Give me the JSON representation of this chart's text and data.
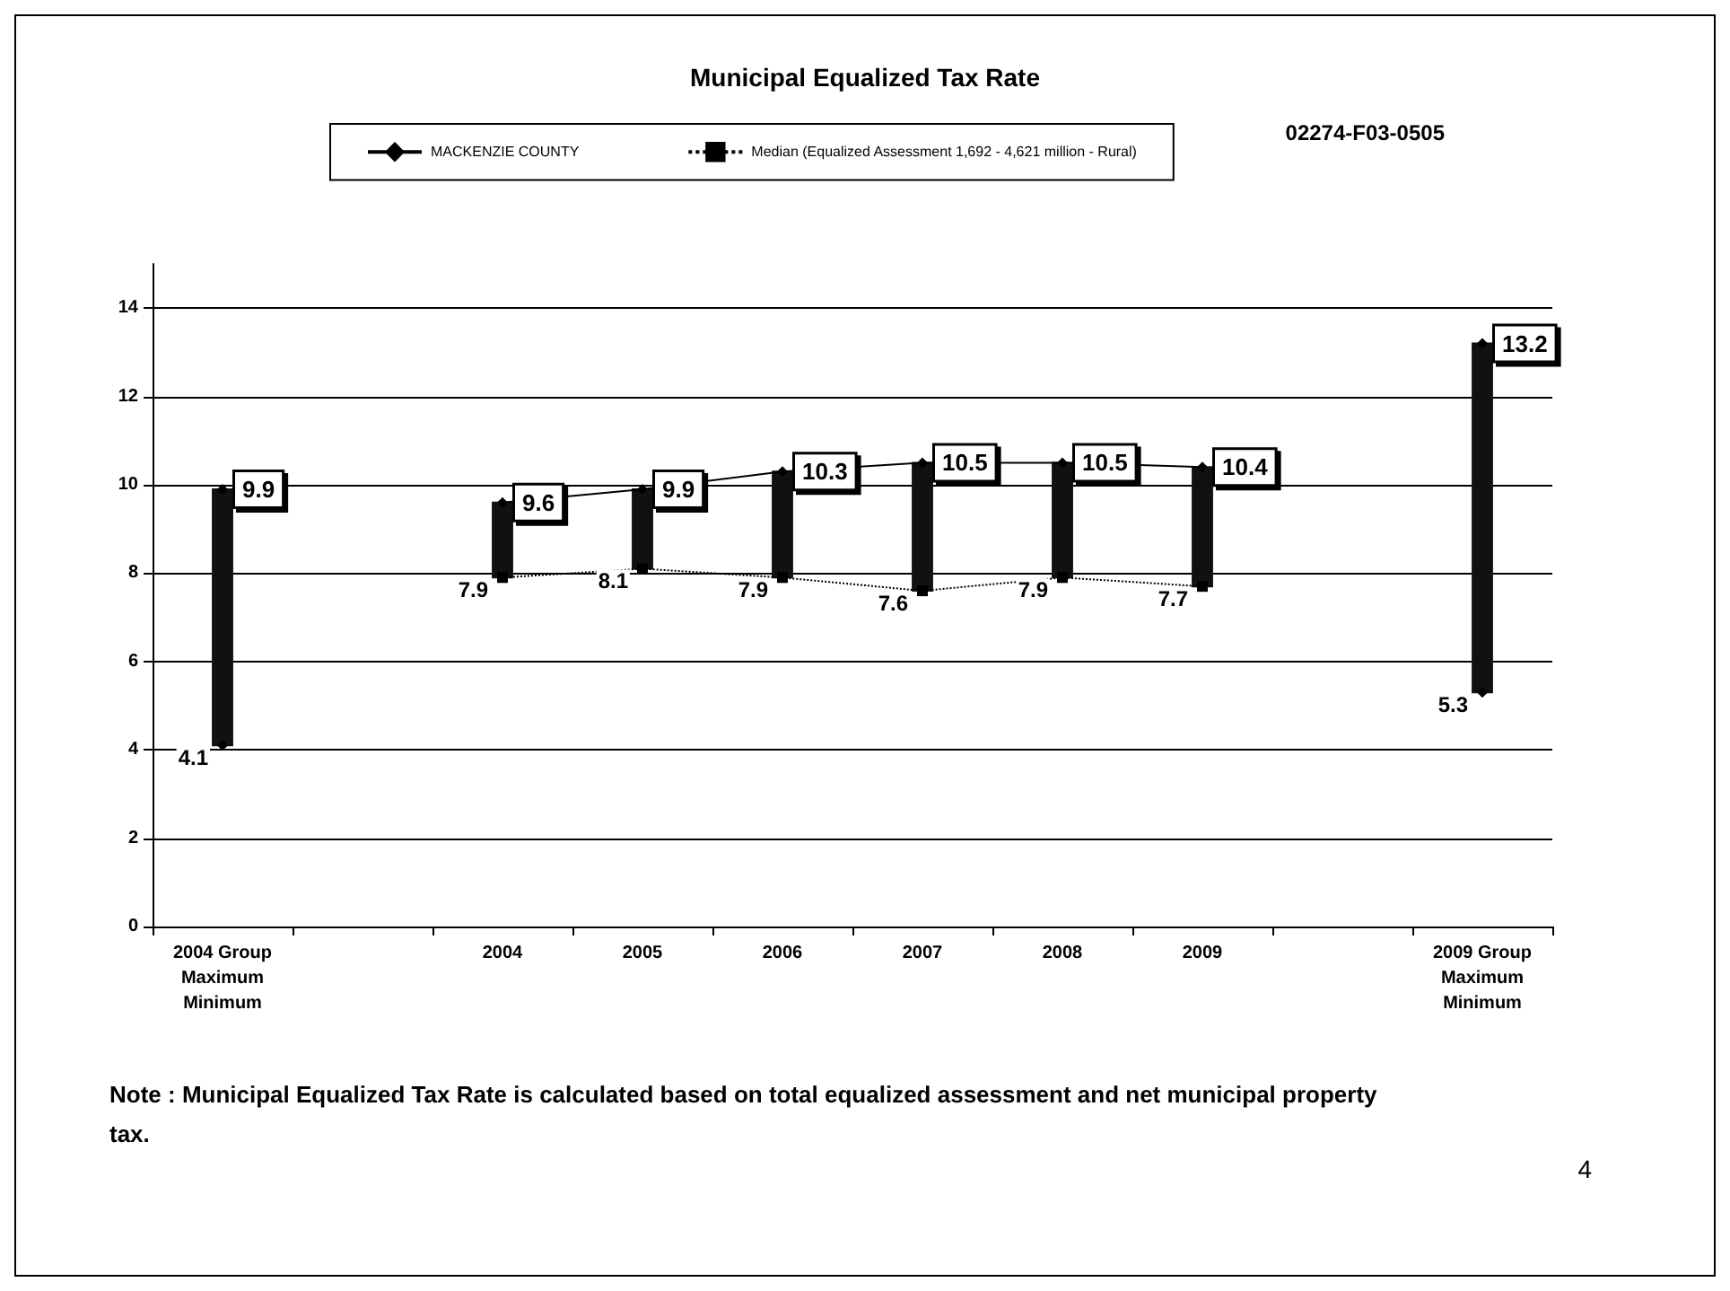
{
  "chart_data": {
    "type": "line",
    "title": "Municipal Equalized Tax Rate",
    "annotations": [
      "02274-F03-0505",
      "Note : Municipal Equalized Tax Rate is calculated based on total equalized assessment and net municipal property tax.",
      "4"
    ],
    "categories": [
      "2004 Group\nMaximum\nMinimum",
      null,
      "2004",
      "2005",
      "2006",
      "2007",
      "2008",
      "2009",
      null,
      "2009 Group\nMaximum\nMinimum"
    ],
    "ylim": [
      0,
      15
    ],
    "yticks": [
      0,
      2,
      4,
      6,
      8,
      10,
      12,
      14
    ],
    "grid": "y",
    "legend": "top",
    "series": [
      {
        "type": "bar",
        "color": "#111111",
        "base": [
          4.1,
          null,
          7.9,
          8.1,
          7.9,
          7.6,
          7.9,
          7.7,
          null,
          5.3
        ],
        "values": [
          5.8,
          null,
          1.7,
          1.8,
          2.4,
          2.9,
          2.6,
          2.7,
          null,
          7.9
        ]
      },
      {
        "name": "MACKENZIE COUNTY",
        "color": "#000000",
        "marker": "diamond",
        "line_style": "solid",
        "values": [
          null,
          null,
          9.6,
          9.9,
          10.3,
          10.5,
          10.5,
          10.4,
          null,
          null
        ],
        "value_labels": [
          null,
          null,
          "9.6",
          "9.9",
          "10.3",
          "10.5",
          "10.5",
          "10.4",
          null,
          null
        ]
      },
      {
        "name": "Median (Equalized Assessment 1,692 - 4,621 million - Rural)",
        "color": "#000000",
        "marker": "square",
        "line_style": "dotted",
        "values": [
          null,
          null,
          7.9,
          8.1,
          7.9,
          7.6,
          7.9,
          7.7,
          null,
          null
        ],
        "value_labels": [
          null,
          null,
          "7.9",
          "8.1",
          "7.9",
          "7.6",
          "7.9",
          "7.7",
          null,
          null
        ]
      },
      {
        "type": "scatter",
        "color": "#000000",
        "marker": "diamond",
        "values": [
          9.9,
          null,
          null,
          null,
          null,
          null,
          null,
          null,
          null,
          13.2
        ],
        "value_labels": [
          "9.9",
          null,
          null,
          null,
          null,
          null,
          null,
          null,
          null,
          "13.2"
        ]
      },
      {
        "type": "scatter",
        "color": "#000000",
        "marker": "diamond",
        "values": [
          4.1,
          null,
          null,
          null,
          null,
          null,
          null,
          null,
          null,
          5.3
        ],
        "value_labels": [
          "4.1",
          null,
          null,
          null,
          null,
          null,
          null,
          null,
          null,
          "5.3"
        ]
      }
    ]
  }
}
